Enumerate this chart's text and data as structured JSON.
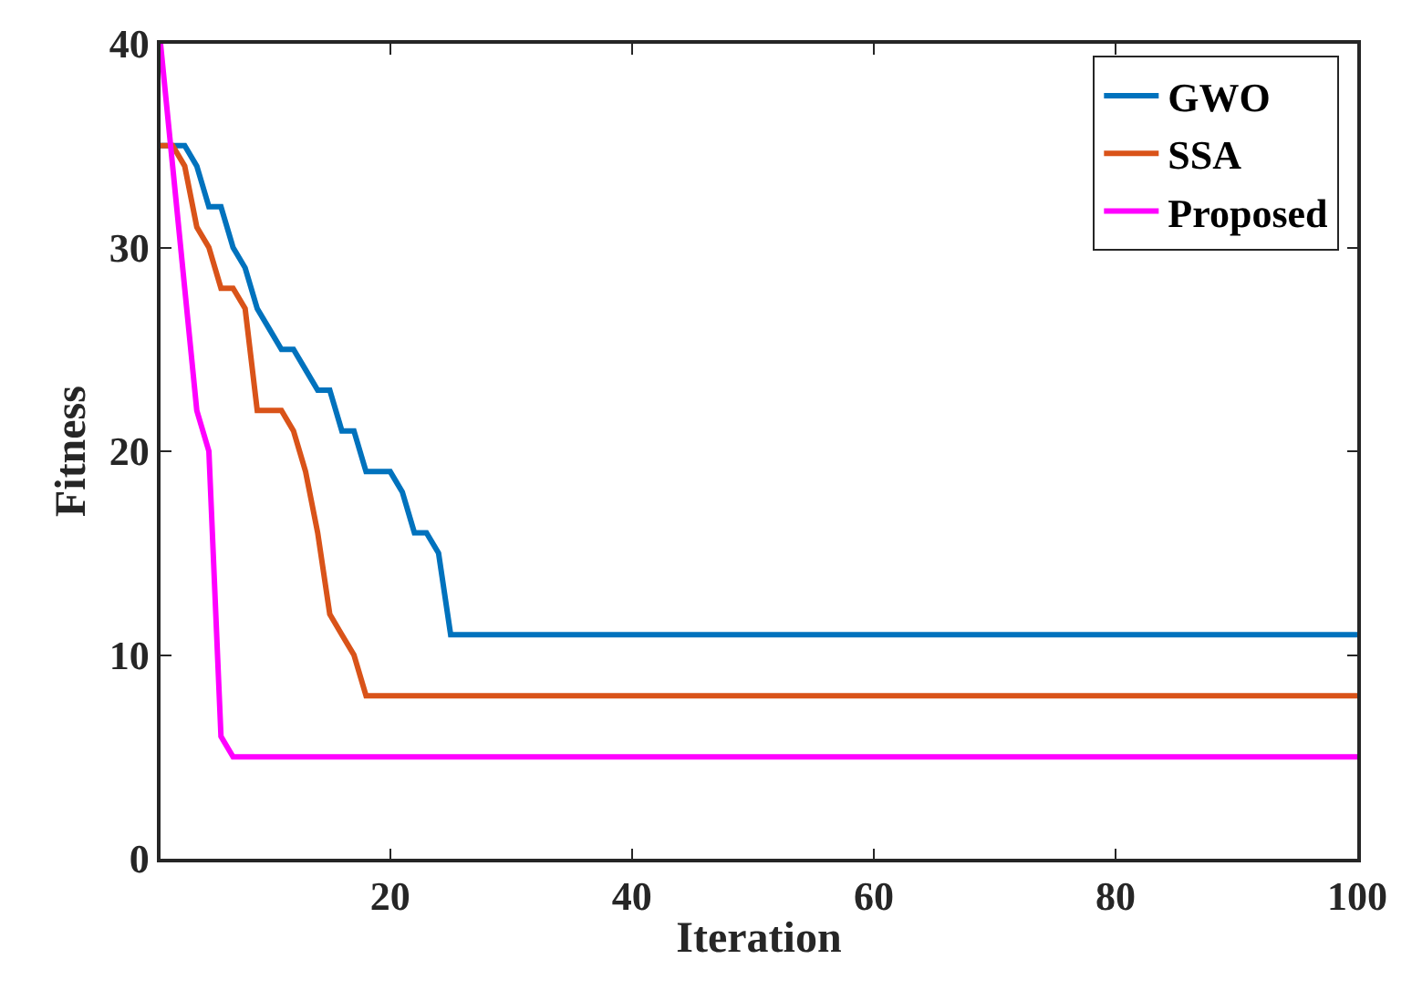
{
  "chart_data": {
    "type": "line",
    "xlabel": "Iteration",
    "ylabel": "Fitness",
    "x": [
      1,
      2,
      3,
      4,
      5,
      6,
      7,
      8,
      9,
      10,
      11,
      12,
      13,
      14,
      15,
      16,
      17,
      18,
      19,
      20,
      21,
      22,
      23,
      24,
      25,
      100
    ],
    "series": [
      {
        "name": "GWO",
        "color": "#0072bd",
        "values": [
          35,
          35,
          35,
          34,
          32,
          32,
          30,
          29,
          27,
          26,
          25,
          25,
          24,
          23,
          23,
          21,
          21,
          19,
          19,
          19,
          18,
          16,
          16,
          15,
          11,
          11
        ]
      },
      {
        "name": "SSA",
        "color": "#d95319",
        "values": [
          35,
          35,
          34,
          31,
          30,
          28,
          28,
          27,
          22,
          22,
          22,
          21,
          19,
          16,
          12,
          11,
          10,
          8,
          8,
          8,
          8,
          8,
          8,
          8,
          8,
          8
        ]
      },
      {
        "name": "Proposed",
        "color": "#ff00ff",
        "values": [
          40,
          34,
          28,
          22,
          20,
          6,
          5,
          5,
          5,
          5,
          5,
          5,
          5,
          5,
          5,
          5,
          5,
          5,
          5,
          5,
          5,
          5,
          5,
          5,
          5,
          5
        ]
      }
    ],
    "xlim": [
      1,
      100
    ],
    "xticks": [
      20,
      40,
      60,
      80,
      100
    ],
    "ylim": [
      0,
      40
    ],
    "yticks": [
      0,
      10,
      20,
      30,
      40
    ],
    "legend": "top right",
    "marker": "none",
    "line_style": "solid"
  }
}
